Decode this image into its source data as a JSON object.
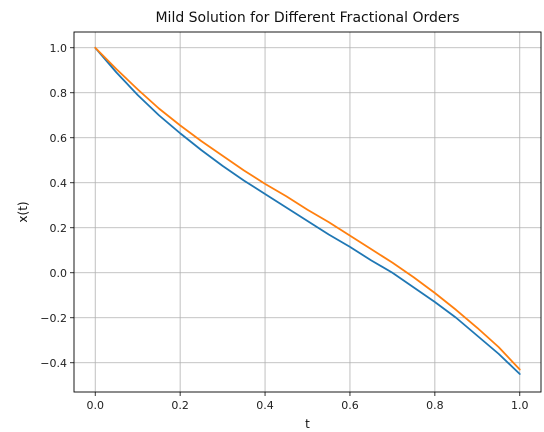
{
  "chart_data": {
    "type": "line",
    "title": "Mild Solution for Different Fractional Orders",
    "xlabel": "t",
    "ylabel": "x(t)",
    "xlim": [
      -0.05,
      1.05
    ],
    "ylim": [
      -0.53,
      1.07
    ],
    "xticks": [
      0.0,
      0.2,
      0.4,
      0.6,
      0.8,
      1.0
    ],
    "xtick_labels": [
      "0.0",
      "0.2",
      "0.4",
      "0.6",
      "0.8",
      "1.0"
    ],
    "yticks": [
      -0.4,
      -0.2,
      0.0,
      0.2,
      0.4,
      0.6,
      0.8,
      1.0
    ],
    "ytick_labels": [
      "−0.4",
      "−0.2",
      "0.0",
      "0.2",
      "0.4",
      "0.6",
      "0.8",
      "1.0"
    ],
    "grid": true,
    "x": [
      0.0,
      0.05,
      0.1,
      0.15,
      0.2,
      0.25,
      0.3,
      0.35,
      0.4,
      0.45,
      0.5,
      0.55,
      0.6,
      0.65,
      0.7,
      0.75,
      0.8,
      0.85,
      0.9,
      0.95,
      1.0
    ],
    "series": [
      {
        "color": "#1f77b4",
        "values": [
          1.0,
          0.89,
          0.79,
          0.7,
          0.62,
          0.545,
          0.475,
          0.41,
          0.35,
          0.29,
          0.23,
          0.17,
          0.115,
          0.055,
          0.0,
          -0.065,
          -0.13,
          -0.2,
          -0.28,
          -0.36,
          -0.45
        ]
      },
      {
        "color": "#ff7f0e",
        "values": [
          1.0,
          0.905,
          0.815,
          0.73,
          0.655,
          0.585,
          0.52,
          0.455,
          0.395,
          0.34,
          0.28,
          0.225,
          0.165,
          0.105,
          0.045,
          -0.02,
          -0.09,
          -0.165,
          -0.245,
          -0.33,
          -0.43
        ]
      }
    ]
  }
}
